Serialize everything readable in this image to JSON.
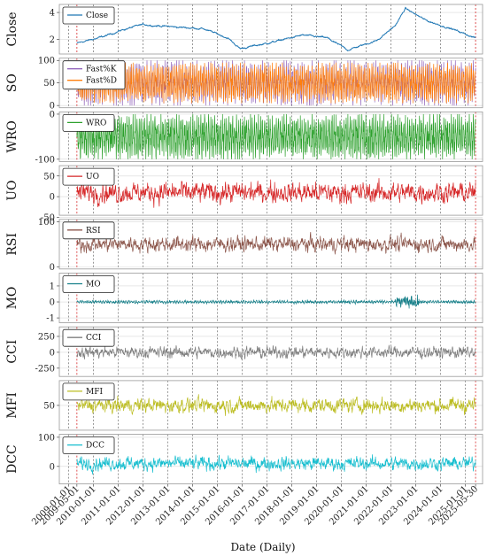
{
  "chart_data": {
    "type": "line",
    "xlabel": "Date (Daily)",
    "x_ticks": [
      "2009-01-01",
      "2010-01-01",
      "2011-01-01",
      "2012-01-01",
      "2013-01-01",
      "2014-01-01",
      "2015-01-01",
      "2016-01-01",
      "2017-01-01",
      "2018-01-01",
      "2019-01-01",
      "2020-01-01",
      "2021-01-01",
      "2022-01-01",
      "2023-01-01",
      "2024-01-01",
      "2025-01-01"
    ],
    "highlight_ticks": [
      "2009-05-01",
      "2025-05-30"
    ],
    "highlight_color": "#d62728",
    "x_range": [
      "2008-08-15",
      "2025-09-10"
    ],
    "data_range": [
      "2009-05-01",
      "2025-05-30"
    ],
    "grid": true,
    "legend_position": "top-left",
    "panels": [
      {
        "ylabel": "Close",
        "ylim": [
          0.9,
          4.6
        ],
        "yticks": [
          2,
          4
        ],
        "series": [
          {
            "name": "Close",
            "color": "#1f77b4",
            "pattern": "close",
            "anchors": [
              [
                "2009-05-01",
                1.7
              ],
              [
                "2010-06-01",
                2.2
              ],
              [
                "2011-03-01",
                2.7
              ],
              [
                "2012-01-01",
                3.1
              ],
              [
                "2013-06-01",
                2.9
              ],
              [
                "2014-06-01",
                2.8
              ],
              [
                "2015-06-01",
                2.1
              ],
              [
                "2015-12-01",
                1.3
              ],
              [
                "2017-01-01",
                1.7
              ],
              [
                "2018-06-01",
                2.3
              ],
              [
                "2019-06-01",
                2.1
              ],
              [
                "2020-04-01",
                1.2
              ],
              [
                "2021-06-01",
                1.9
              ],
              [
                "2022-03-01",
                3.0
              ],
              [
                "2022-08-01",
                4.3
              ],
              [
                "2023-06-01",
                3.4
              ],
              [
                "2024-06-01",
                2.8
              ],
              [
                "2025-05-30",
                2.1
              ]
            ]
          }
        ]
      },
      {
        "ylabel": "SO",
        "ylim": [
          -5,
          105
        ],
        "yticks": [
          0,
          50,
          100
        ],
        "series": [
          {
            "name": "Fast%K",
            "color": "#9467bd",
            "pattern": "osc",
            "min": 0,
            "max": 100
          },
          {
            "name": "Fast%D",
            "color": "#ff7f0e",
            "pattern": "osc",
            "min": 5,
            "max": 95
          }
        ]
      },
      {
        "ylabel": "WRO",
        "ylim": [
          -105,
          5
        ],
        "yticks": [
          -100,
          0
        ],
        "series": [
          {
            "name": "WRO",
            "color": "#2ca02c",
            "pattern": "osc",
            "min": -100,
            "max": 0
          }
        ]
      },
      {
        "ylabel": "UO",
        "ylim": [
          -45,
          75
        ],
        "yticks": [
          -50,
          0,
          50
        ],
        "series": [
          {
            "name": "UO",
            "color": "#d62728",
            "pattern": "noise",
            "center": 10,
            "amp": 30,
            "min": -40,
            "max": 70
          }
        ]
      },
      {
        "ylabel": "RSI",
        "ylim": [
          -5,
          105
        ],
        "yticks": [
          0,
          100
        ],
        "series": [
          {
            "name": "RSI",
            "color": "#8c564b",
            "pattern": "noise",
            "center": 50,
            "amp": 20,
            "min": 5,
            "max": 95
          }
        ]
      },
      {
        "ylabel": "MO",
        "ylim": [
          -1.3,
          1.8
        ],
        "yticks": [
          -1,
          0,
          1
        ],
        "series": [
          {
            "name": "MO",
            "color": "#17808a",
            "pattern": "mo",
            "center": 0,
            "amp": 0.12
          }
        ]
      },
      {
        "ylabel": "CCI",
        "ylim": [
          -380,
          400
        ],
        "yticks": [
          -250,
          0,
          250
        ],
        "series": [
          {
            "name": "CCI",
            "color": "#7f7f7f",
            "pattern": "noise",
            "center": 0,
            "amp": 110,
            "min": -300,
            "max": 350
          }
        ]
      },
      {
        "ylabel": "MFI",
        "ylim": [
          5,
          95
        ],
        "yticks": [
          50
        ],
        "series": [
          {
            "name": "MFI",
            "color": "#bcbd22",
            "pattern": "noise",
            "center": 50,
            "amp": 16,
            "min": 15,
            "max": 90
          }
        ]
      },
      {
        "ylabel": "DCC",
        "ylim": [
          -60,
          110
        ],
        "yticks": [
          0,
          100
        ],
        "series": [
          {
            "name": "DCC",
            "color": "#17becf",
            "pattern": "noise",
            "center": 10,
            "amp": 28,
            "min": -50,
            "max": 95
          }
        ]
      }
    ]
  }
}
